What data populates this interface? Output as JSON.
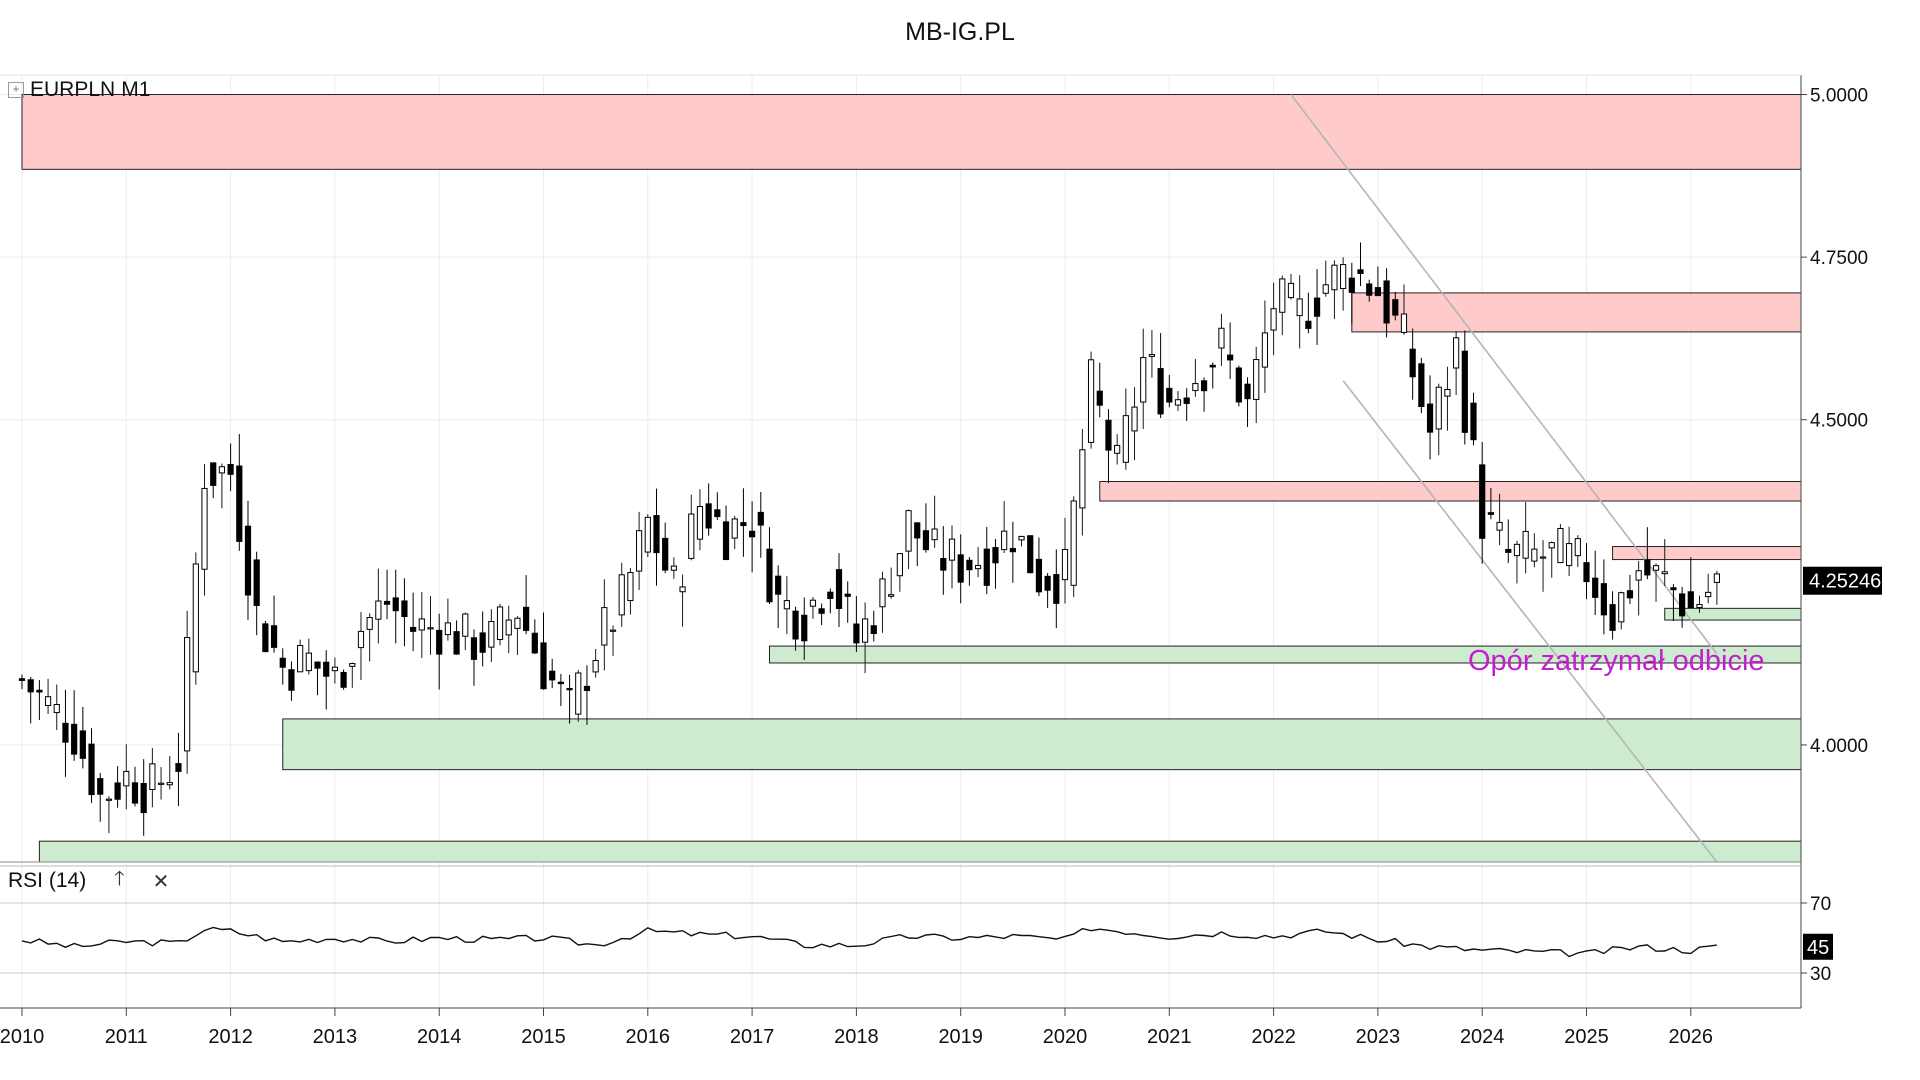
{
  "page_title": "MB-IG.PL",
  "panel": {
    "symbol": "EURPLN",
    "timeframe": "M1",
    "collapse_glyph": "+"
  },
  "rsi": {
    "label": "RSI (14)",
    "up_glyph": "🡑",
    "close_glyph": "✕",
    "levels": [
      70,
      30
    ],
    "current": "45"
  },
  "annotation": "Opór zatrzymał odbicie",
  "price": {
    "current": "4.25246",
    "ticks": [
      "5.0000",
      "4.7500",
      "4.5000",
      "4.0000"
    ],
    "tick_values": [
      5.0,
      4.75,
      4.5,
      4.0
    ]
  },
  "years": [
    "2010",
    "2011",
    "2012",
    "2013",
    "2014",
    "2015",
    "2016",
    "2017",
    "2018",
    "2019",
    "2020",
    "2021",
    "2022",
    "2023",
    "2024",
    "2025",
    "2026"
  ],
  "colors": {
    "resistance_zone": "#ffcaca",
    "support_zone": "#cdeccf",
    "annotation": "#c51ecf",
    "candle_up": "#ffffff",
    "candle_down": "#000000"
  },
  "chart_data": {
    "type": "candlestick",
    "instrument": "EURPLN",
    "timeframe": "M1",
    "x_range": [
      "2010-01",
      "2026-04"
    ],
    "ylim": [
      3.82,
      5.03
    ],
    "resistance_zones": [
      {
        "from": "2010-01",
        "top": 5.0,
        "bottom": 4.885
      },
      {
        "from": "2022-10",
        "top": 4.695,
        "bottom": 4.635
      },
      {
        "from": "2020-05",
        "top": 4.405,
        "bottom": 4.375
      },
      {
        "from": "2025-04",
        "top": 4.305,
        "bottom": 4.285
      }
    ],
    "support_zones": [
      {
        "from": "2025-10",
        "top": 4.21,
        "bottom": 4.192
      },
      {
        "from": "2017-03",
        "top": 4.152,
        "bottom": 4.126
      },
      {
        "from": "2012-07",
        "top": 4.04,
        "bottom": 3.962
      },
      {
        "from": "2010-03",
        "top": 3.852,
        "bottom": 3.818
      }
    ],
    "trend_lines": [
      {
        "from": [
          "2022-03",
          5.0
        ],
        "to": [
          "2026-04",
          4.14
        ]
      },
      {
        "from": [
          "2022-09",
          4.56
        ],
        "to": [
          "2026-04",
          3.82
        ]
      }
    ],
    "series": [
      {
        "name": "EURPLN",
        "points": [
          [
            "2010-01",
            4.1
          ],
          [
            "2010-07",
            4.02
          ],
          [
            "2010-10",
            3.92
          ],
          [
            "2011-01",
            3.95
          ],
          [
            "2011-04",
            3.93
          ],
          [
            "2011-07",
            3.98
          ],
          [
            "2011-10",
            4.42
          ],
          [
            "2012-01",
            4.42
          ],
          [
            "2012-04",
            4.2
          ],
          [
            "2012-07",
            4.12
          ],
          [
            "2012-10",
            4.13
          ],
          [
            "2013-01",
            4.1
          ],
          [
            "2013-04",
            4.18
          ],
          [
            "2013-07",
            4.22
          ],
          [
            "2013-10",
            4.18
          ],
          [
            "2014-01",
            4.18
          ],
          [
            "2014-04",
            4.16
          ],
          [
            "2014-07",
            4.16
          ],
          [
            "2014-10",
            4.21
          ],
          [
            "2015-01",
            4.12
          ],
          [
            "2015-04",
            4.05
          ],
          [
            "2015-07",
            4.15
          ],
          [
            "2015-10",
            4.22
          ],
          [
            "2016-01",
            4.34
          ],
          [
            "2016-04",
            4.24
          ],
          [
            "2016-07",
            4.37
          ],
          [
            "2016-10",
            4.33
          ],
          [
            "2017-01",
            4.35
          ],
          [
            "2017-04",
            4.22
          ],
          [
            "2017-07",
            4.2
          ],
          [
            "2017-10",
            4.26
          ],
          [
            "2018-01",
            4.16
          ],
          [
            "2018-04",
            4.23
          ],
          [
            "2018-07",
            4.34
          ],
          [
            "2018-10",
            4.29
          ],
          [
            "2019-01",
            4.28
          ],
          [
            "2019-04",
            4.29
          ],
          [
            "2019-07",
            4.33
          ],
          [
            "2019-10",
            4.26
          ],
          [
            "2020-01",
            4.26
          ],
          [
            "2020-04",
            4.55
          ],
          [
            "2020-07",
            4.42
          ],
          [
            "2020-10",
            4.59
          ],
          [
            "2021-01",
            4.53
          ],
          [
            "2021-04",
            4.57
          ],
          [
            "2021-07",
            4.61
          ],
          [
            "2021-10",
            4.52
          ],
          [
            "2022-01",
            4.68
          ],
          [
            "2022-04",
            4.66
          ],
          [
            "2022-07",
            4.71
          ],
          [
            "2022-10",
            4.73
          ],
          [
            "2023-01",
            4.7
          ],
          [
            "2023-04",
            4.62
          ],
          [
            "2023-07",
            4.48
          ],
          [
            "2023-10",
            4.61
          ],
          [
            "2024-01",
            4.35
          ],
          [
            "2024-04",
            4.29
          ],
          [
            "2024-07",
            4.29
          ],
          [
            "2024-10",
            4.29
          ],
          [
            "2025-01",
            4.27
          ],
          [
            "2025-04",
            4.2
          ],
          [
            "2025-07",
            4.27
          ],
          [
            "2025-10",
            4.25
          ],
          [
            "2026-01",
            4.21
          ],
          [
            "2026-04",
            4.25
          ]
        ]
      },
      {
        "name": "RSI (14)",
        "ylim": [
          10,
          90
        ],
        "points": [
          [
            "2010-01",
            49
          ],
          [
            "2010-07",
            45
          ],
          [
            "2011-01",
            48
          ],
          [
            "2011-07",
            47
          ],
          [
            "2011-10",
            55
          ],
          [
            "2012-01",
            54
          ],
          [
            "2012-07",
            48
          ],
          [
            "2013-01",
            50
          ],
          [
            "2013-07",
            48
          ],
          [
            "2014-01",
            50
          ],
          [
            "2014-07",
            49
          ],
          [
            "2015-01",
            50
          ],
          [
            "2015-07",
            46
          ],
          [
            "2016-01",
            54
          ],
          [
            "2016-07",
            52
          ],
          [
            "2017-01",
            51
          ],
          [
            "2017-07",
            46
          ],
          [
            "2018-01",
            46
          ],
          [
            "2018-07",
            51
          ],
          [
            "2019-01",
            50
          ],
          [
            "2019-07",
            51
          ],
          [
            "2020-01",
            49
          ],
          [
            "2020-04",
            56
          ],
          [
            "2021-01",
            51
          ],
          [
            "2021-07",
            53
          ],
          [
            "2022-01",
            51
          ],
          [
            "2022-07",
            54
          ],
          [
            "2023-01",
            49
          ],
          [
            "2023-07",
            45
          ],
          [
            "2024-01",
            43
          ],
          [
            "2024-07",
            42
          ],
          [
            "2025-01",
            41
          ],
          [
            "2025-07",
            45
          ],
          [
            "2026-01",
            43
          ],
          [
            "2026-04",
            45
          ]
        ]
      }
    ]
  }
}
